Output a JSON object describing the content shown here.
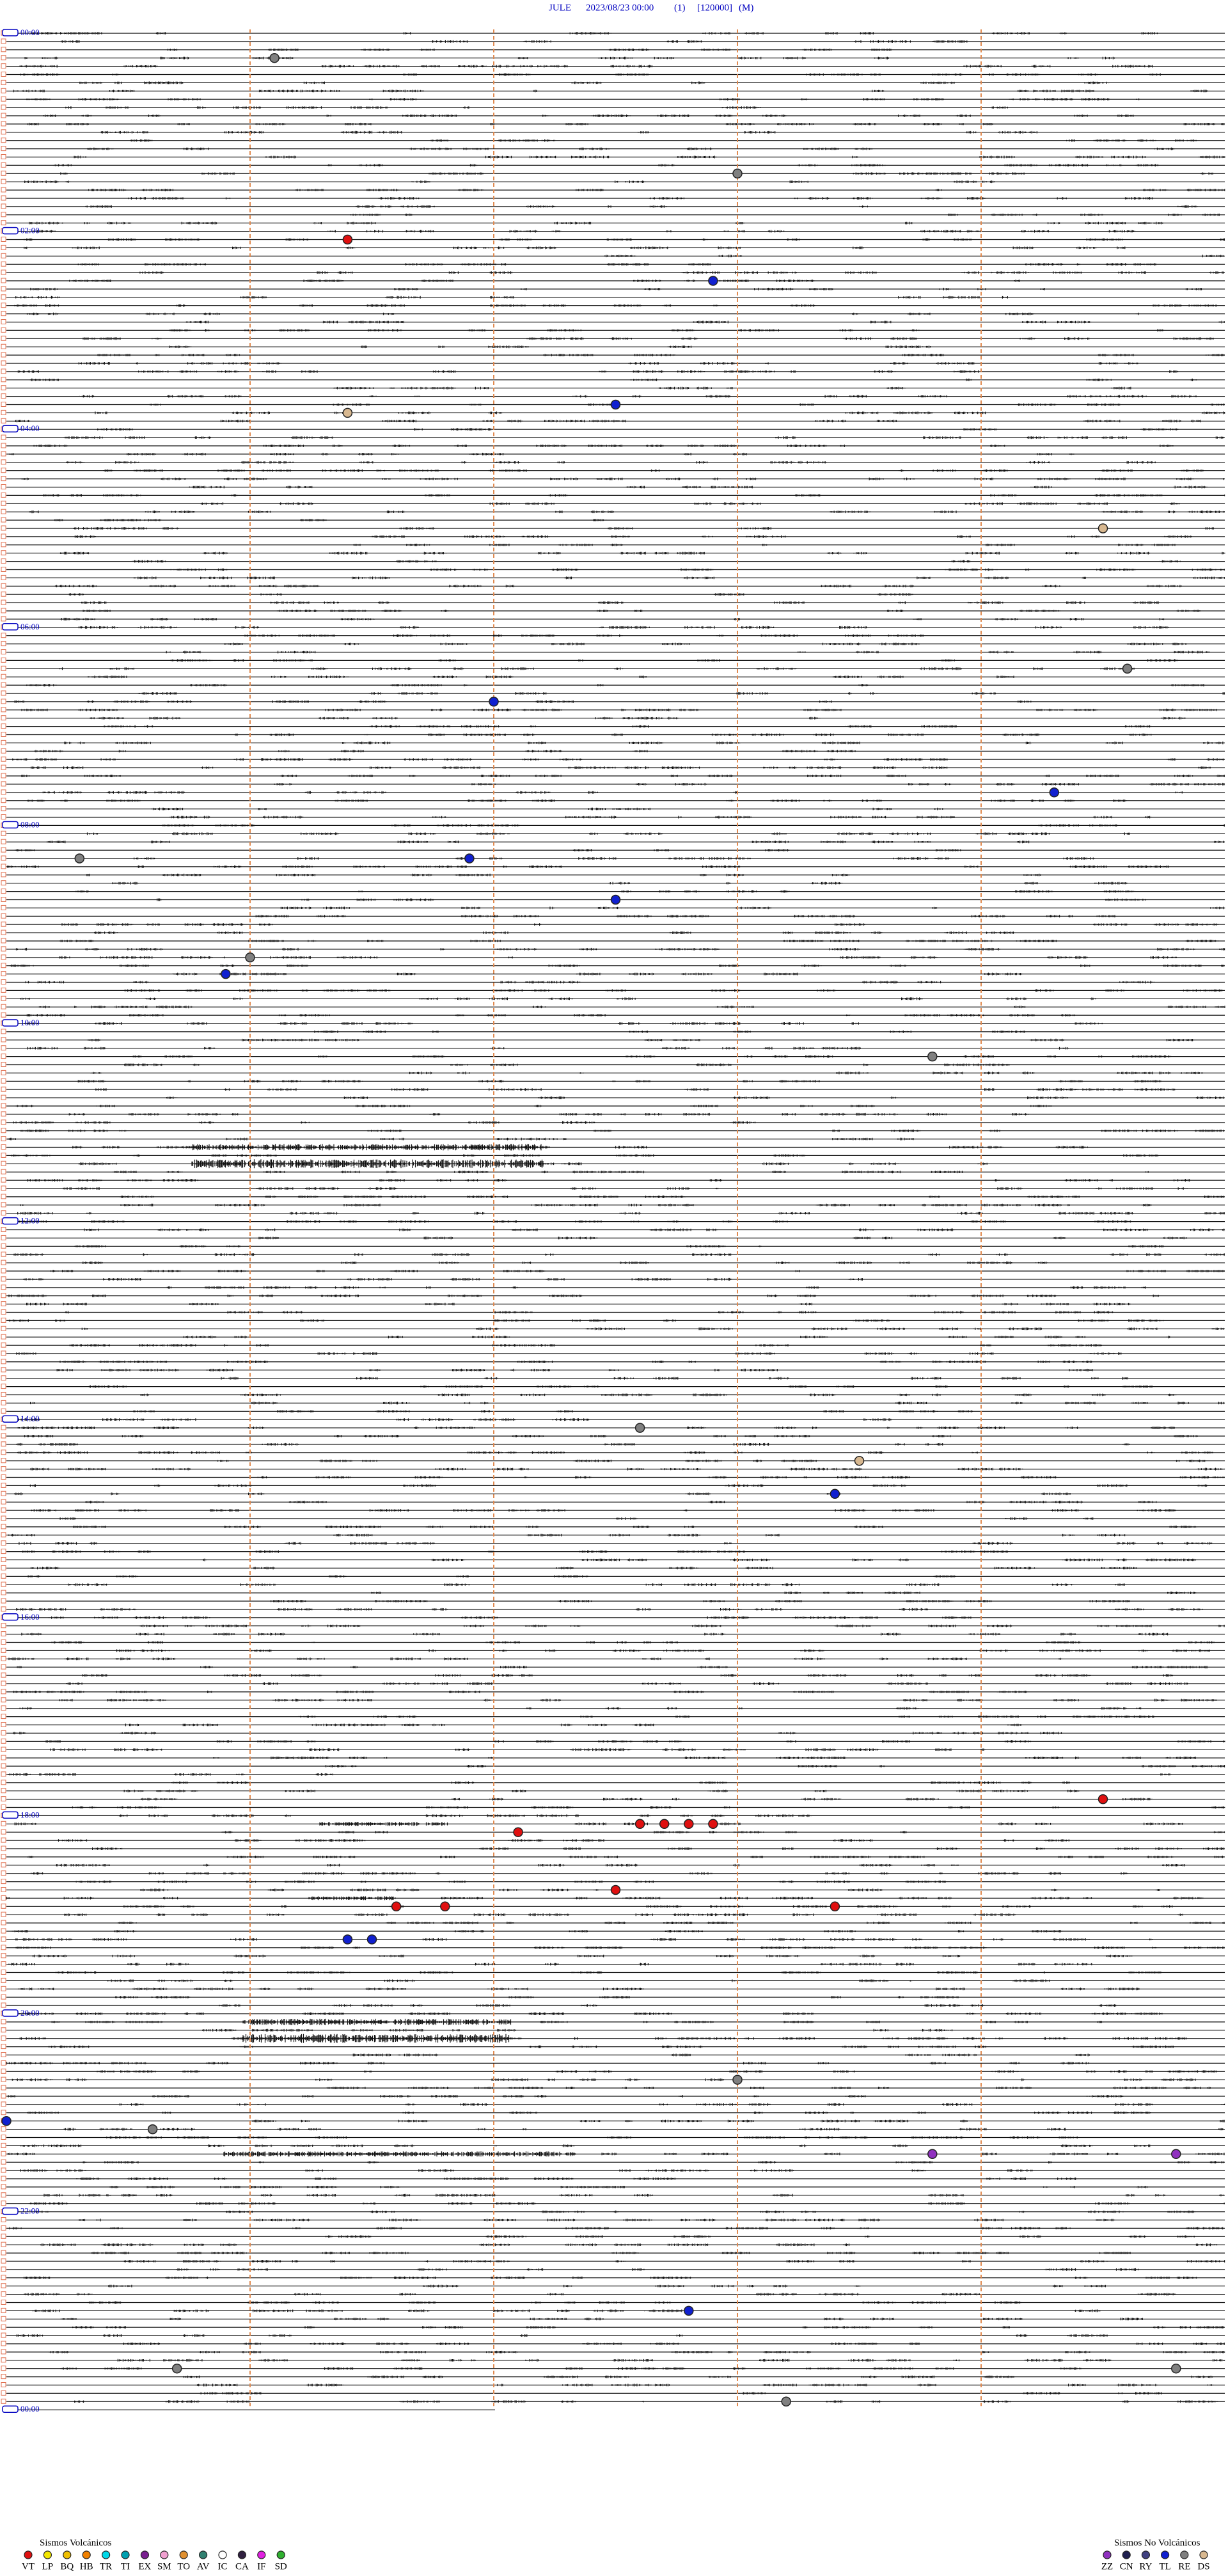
{
  "chart_data": {
    "type": "helicorder",
    "header": {
      "station": "JULE",
      "datetime": "2023/08/23 00:00",
      "component": "(1)",
      "scale": "[120000]",
      "mode": "(M)"
    },
    "hour_labels": [
      "00:00",
      "02:00",
      "04:00",
      "06:00",
      "08:00",
      "10:00",
      "12:00",
      "14:00",
      "16:00",
      "18:00",
      "20:00",
      "22:00",
      "00:00"
    ],
    "legend_volcanic": {
      "title": "Sismos Volcánicos",
      "items": [
        {
          "code": "VT",
          "color": "#e01010"
        },
        {
          "code": "LP",
          "color": "#f2e600"
        },
        {
          "code": "BQ",
          "color": "#f0c000"
        },
        {
          "code": "HB",
          "color": "#f08000"
        },
        {
          "code": "TR",
          "color": "#00d8e8"
        },
        {
          "code": "TI",
          "color": "#00a0b0"
        },
        {
          "code": "EX",
          "color": "#7a2090"
        },
        {
          "code": "SM",
          "color": "#f0a0d0"
        },
        {
          "code": "TO",
          "color": "#e09030"
        },
        {
          "code": "AV",
          "color": "#308070"
        },
        {
          "code": "IC",
          "color": "#ffffff"
        },
        {
          "code": "CA",
          "color": "#302040"
        },
        {
          "code": "IF",
          "color": "#e020e0"
        },
        {
          "code": "SD",
          "color": "#30b030"
        }
      ]
    },
    "legend_non_volcanic": {
      "title": "Sismos No Volcánicos",
      "items": [
        {
          "code": "ZZ",
          "color": "#9030c0"
        },
        {
          "code": "CN",
          "color": "#202050"
        },
        {
          "code": "RY",
          "color": "#404080"
        },
        {
          "code": "TL",
          "color": "#1020d0"
        },
        {
          "code": "RE",
          "color": "#808080"
        },
        {
          "code": "DS",
          "color": "#d8b890"
        }
      ]
    },
    "events": [
      {
        "type": "RE",
        "minute": 16.1
      },
      {
        "type": "RE",
        "minute": 88.0
      },
      {
        "type": "VT",
        "minute": 126.4
      },
      {
        "type": "TL",
        "minute": 152.9
      },
      {
        "type": "TL",
        "minute": 227.5
      },
      {
        "type": "DS",
        "minute": 231.4
      },
      {
        "type": "DS",
        "minute": 304.5
      },
      {
        "type": "RE",
        "minute": 389.6
      },
      {
        "type": "TL",
        "minute": 407.0
      },
      {
        "type": "TL",
        "minute": 464.3
      },
      {
        "type": "RE",
        "minute": 500.3
      },
      {
        "type": "TL",
        "minute": 501.9
      },
      {
        "type": "TL",
        "minute": 527.5
      },
      {
        "type": "RE",
        "minute": 561.0
      },
      {
        "type": "TL",
        "minute": 570.9
      },
      {
        "type": "RE",
        "minute": 623.8
      },
      {
        "type": "RE",
        "minute": 847.6
      },
      {
        "type": "DS",
        "minute": 868.5
      },
      {
        "type": "TL",
        "minute": 888.4
      },
      {
        "type": "VT",
        "minute": 1074.5
      },
      {
        "type": "VT",
        "minute": 1092.1
      },
      {
        "type": "VT",
        "minute": 1087.6
      },
      {
        "type": "VT",
        "minute": 1087.7
      },
      {
        "type": "VT",
        "minute": 1087.8
      },
      {
        "type": "VT",
        "minute": 1087.9
      },
      {
        "type": "VT",
        "minute": 1127.5
      },
      {
        "type": "VT",
        "minute": 1136.6
      },
      {
        "type": "VT",
        "minute": 1136.8
      },
      {
        "type": "VT",
        "minute": 1138.4
      },
      {
        "type": "TL",
        "minute": 1156.4
      },
      {
        "type": "TL",
        "minute": 1156.5
      },
      {
        "type": "RE",
        "minute": 1243.0
      },
      {
        "type": "TL",
        "minute": 1265.0
      },
      {
        "type": "RE",
        "minute": 1270.6
      },
      {
        "type": "ZZ",
        "minute": 1288.8
      },
      {
        "type": "ZZ",
        "minute": 1289.8
      },
      {
        "type": "TL",
        "minute": 1382.8
      },
      {
        "type": "RE",
        "minute": 1415.7
      },
      {
        "type": "RE",
        "minute": 1419.8
      },
      {
        "type": "RE",
        "minute": 1438.2
      }
    ]
  }
}
